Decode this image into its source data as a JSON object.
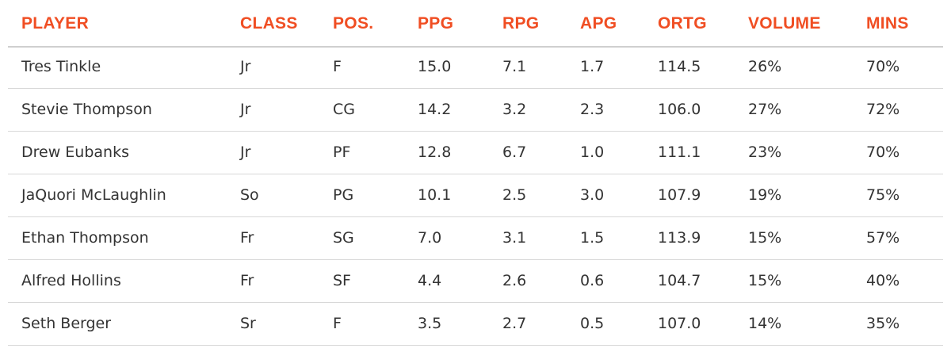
{
  "table": {
    "headers": [
      "PLAYER",
      "CLASS",
      "POS.",
      "PPG",
      "RPG",
      "APG",
      "ORTG",
      "VOLUME",
      "MINS"
    ],
    "rows": [
      [
        "Tres Tinkle",
        "Jr",
        "F",
        "15.0",
        "7.1",
        "1.7",
        "114.5",
        "26%",
        "70%"
      ],
      [
        "Stevie Thompson",
        "Jr",
        "CG",
        "14.2",
        "3.2",
        "2.3",
        "106.0",
        "27%",
        "72%"
      ],
      [
        "Drew Eubanks",
        "Jr",
        "PF",
        "12.8",
        "6.7",
        "1.0",
        "111.1",
        "23%",
        "70%"
      ],
      [
        "JaQuori McLaughlin",
        "So",
        "PG",
        "10.1",
        "2.5",
        "3.0",
        "107.9",
        "19%",
        "75%"
      ],
      [
        "Ethan Thompson",
        "Fr",
        "SG",
        "7.0",
        "3.1",
        "1.5",
        "113.9",
        "15%",
        "57%"
      ],
      [
        "Alfred Hollins",
        "Fr",
        "SF",
        "4.4",
        "2.6",
        "0.6",
        "104.7",
        "15%",
        "40%"
      ],
      [
        "Seth Berger",
        "Sr",
        "F",
        "3.5",
        "2.7",
        "0.5",
        "107.0",
        "14%",
        "35%"
      ]
    ]
  }
}
